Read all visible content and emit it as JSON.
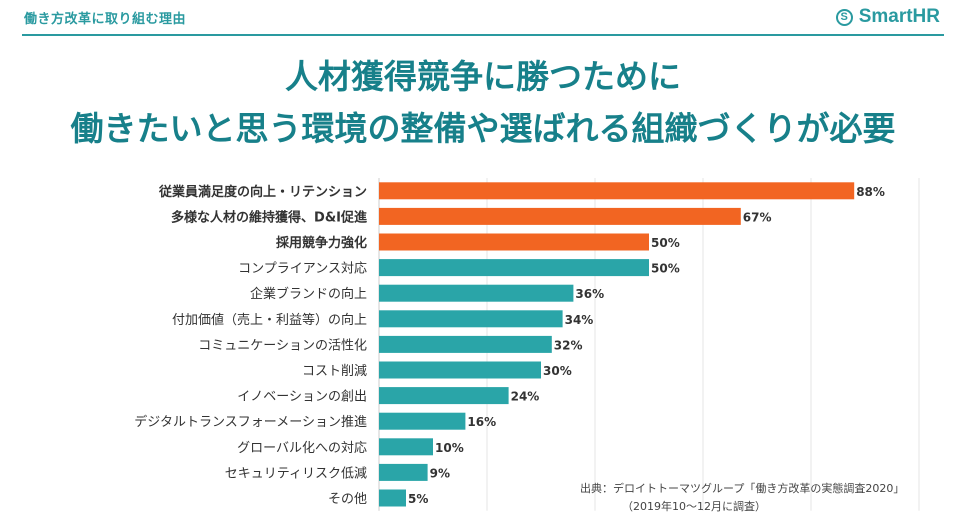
{
  "header": {
    "section_label": "働き方改革に取り組む理由",
    "logo_text": "SmartHR",
    "logo_icon": "smarthr-logo-icon"
  },
  "title": {
    "line1": "人材獲得競争に勝つために",
    "line2": "働きたいと思う環境の整備や選ばれる組織づくりが必要"
  },
  "source": {
    "line1": "出典：デロイトトーマツグループ「働き方改革の実態調査2020」",
    "line2": "（2019年10〜12月に調査）"
  },
  "colors": {
    "accent": "#2a9aa0",
    "title": "#17808a",
    "highlight": "#f26522",
    "normal": "#2aa5a8"
  },
  "chart_data": {
    "type": "bar",
    "orientation": "horizontal",
    "title": "",
    "xlabel": "",
    "ylabel": "",
    "xlim": [
      0,
      100
    ],
    "grid": true,
    "value_suffix": "%",
    "categories": [
      "従業員満足度の向上・リテンション",
      "多様な人材の維持獲得、D&I促進",
      "採用競争力強化",
      "コンプライアンス対応",
      "企業ブランドの向上",
      "付加価値（売上・利益等）の向上",
      "コミュニケーションの活性化",
      "コスト削減",
      "イノベーションの創出",
      "デジタルトランスフォーメーション推進",
      "グローバル化への対応",
      "セキュリティリスク低減",
      "その他"
    ],
    "values": [
      88,
      67,
      50,
      50,
      36,
      34,
      32,
      30,
      24,
      16,
      10,
      9,
      5
    ],
    "highlighted": [
      true,
      true,
      true,
      false,
      false,
      false,
      false,
      false,
      false,
      false,
      false,
      false,
      false
    ]
  }
}
